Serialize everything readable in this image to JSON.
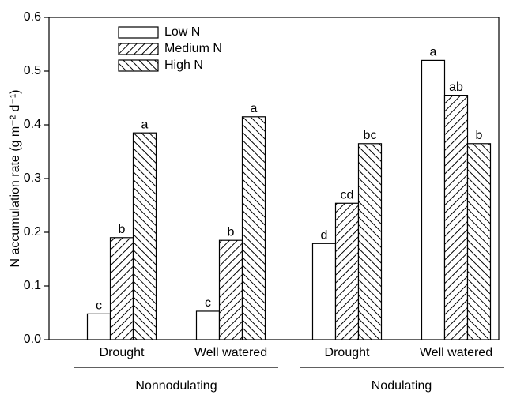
{
  "chart_data": {
    "type": "bar",
    "ylabel": "N accumulation rate (g m⁻² d⁻¹)",
    "categories": [
      "Drought",
      "Well watered",
      "Drought",
      "Well watered"
    ],
    "group_labels": [
      "Nonnodulating",
      "Nodulating"
    ],
    "series": [
      {
        "name": "Low N",
        "color": "#000000",
        "pattern": "none",
        "values": [
          0.048,
          0.053,
          0.179,
          0.52
        ],
        "letters": [
          "c",
          "c",
          "d",
          "a"
        ]
      },
      {
        "name": "Medium N",
        "color": "#000000",
        "pattern": "forward",
        "values": [
          0.19,
          0.185,
          0.254,
          0.455
        ],
        "letters": [
          "b",
          "b",
          "cd",
          "ab"
        ]
      },
      {
        "name": "High N",
        "color": "#000000",
        "pattern": "backward",
        "values": [
          0.385,
          0.415,
          0.365,
          0.365
        ],
        "letters": [
          "a",
          "a",
          "bc",
          "b"
        ]
      }
    ],
    "ylim": [
      0,
      0.6
    ],
    "yticks": [
      {
        "value": 0,
        "label": "0.0"
      },
      0.1,
      0.2,
      0.3,
      0.4,
      0.5,
      0.6
    ],
    "legend": "upper left"
  }
}
